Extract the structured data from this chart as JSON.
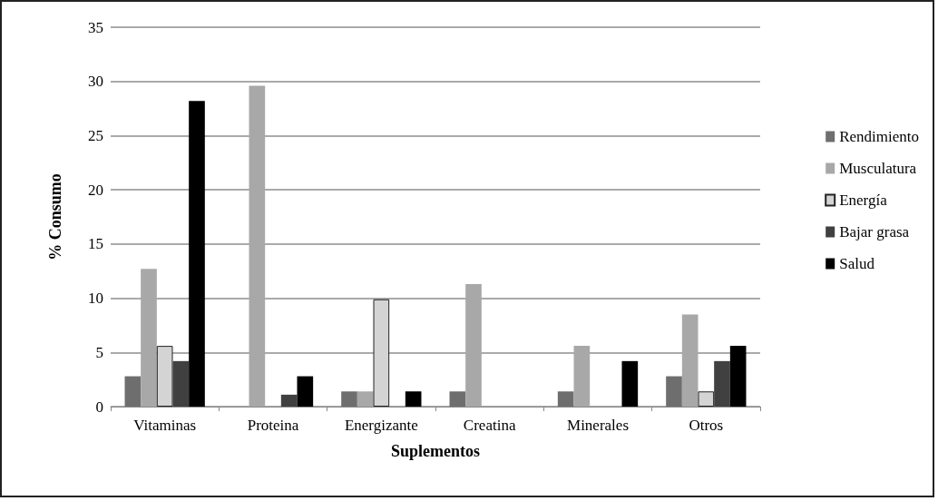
{
  "chart_data": {
    "type": "bar",
    "xlabel": "Suplementos",
    "ylabel": "% Consumo",
    "categories": [
      "Vitaminas",
      "Proteina",
      "Energizante",
      "Creatina",
      "Minerales",
      "Otros"
    ],
    "series": [
      {
        "name": "Rendimiento",
        "color": "#6e6e6e",
        "values": [
          2.8,
          0,
          1.4,
          1.4,
          1.4,
          2.8
        ]
      },
      {
        "name": "Musculatura",
        "color": "#a8a8a8",
        "values": [
          12.7,
          29.6,
          1.4,
          11.3,
          5.6,
          8.5
        ]
      },
      {
        "name": "Energía",
        "color": "#d4d4d4",
        "values": [
          5.6,
          0,
          9.9,
          0,
          0,
          1.4
        ]
      },
      {
        "name": "Bajar grasa",
        "color": "#404040",
        "values": [
          4.2,
          1.1,
          0,
          0,
          0,
          4.2
        ]
      },
      {
        "name": "Salud",
        "color": "#000000",
        "values": [
          28.2,
          2.8,
          1.4,
          0,
          4.2,
          5.6
        ]
      }
    ],
    "ylim": [
      0,
      35
    ],
    "yticks": [
      0,
      5,
      10,
      15,
      20,
      25,
      30,
      35
    ],
    "grid": "y",
    "legend": "right"
  }
}
